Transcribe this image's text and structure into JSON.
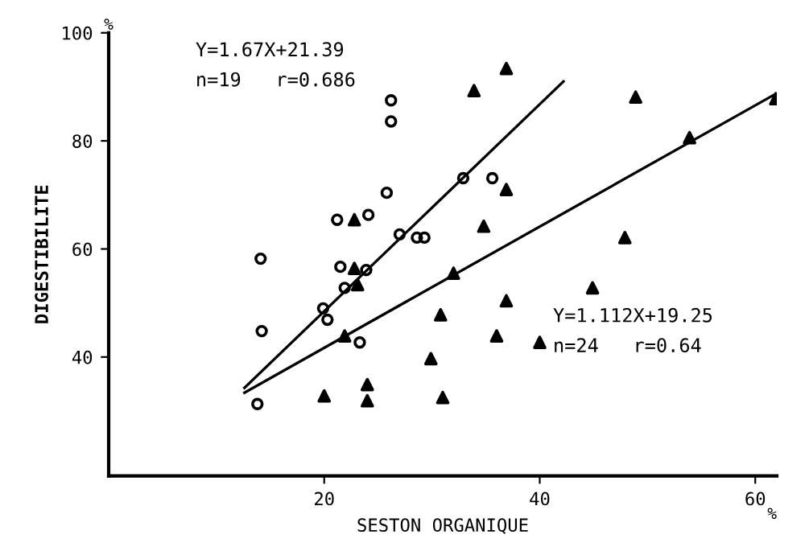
{
  "chart_data": {
    "type": "scatter",
    "xlabel": "SESTON ORGANIQUE",
    "ylabel": "DIGESTIBILITE",
    "xlim": [
      0,
      62
    ],
    "ylim": [
      18,
      100
    ],
    "xticks": [
      20,
      40,
      60
    ],
    "yticks": [
      40,
      60,
      80,
      100
    ],
    "grid": false,
    "legend": false,
    "annotations": [
      "Y=1.67X+21.39\nn=19   r=0.686",
      "Y=1.112X+19.25\nn=24   r=0.64",
      "%",
      "%"
    ],
    "series": [
      {
        "marker": "circle",
        "color": "#000000",
        "x": [
          14.1,
          26.2,
          26.2,
          25.8,
          21.2,
          24.1,
          27.0,
          21.5,
          23.9,
          28.6,
          29.3,
          32.9,
          35.6,
          21.9,
          19.9,
          20.3,
          14.2,
          23.3,
          13.8
        ],
        "values": [
          58.2,
          87.5,
          83.6,
          70.4,
          65.4,
          66.3,
          62.7,
          56.7,
          56.1,
          62.1,
          62.1,
          73.1,
          73.1,
          52.8,
          49.0,
          46.9,
          44.8,
          42.7,
          31.3
        ]
      },
      {
        "marker": "triangle",
        "color": "#000000",
        "x": [
          22.8,
          22.8,
          23.1,
          36.9,
          33.9,
          48.9,
          53.9,
          61.9,
          36.9,
          34.8,
          47.9,
          32.0,
          44.9,
          21.9,
          20.0,
          24.0,
          24.0,
          36.9,
          30.8,
          36.0,
          40.0,
          29.9,
          31.0
        ],
        "values": [
          65.4,
          56.4,
          53.4,
          93.4,
          89.3,
          88.1,
          80.6,
          87.8,
          71.0,
          64.2,
          62.1,
          55.5,
          52.8,
          43.9,
          32.8,
          34.9,
          31.9,
          50.4,
          47.8,
          43.9,
          42.7,
          39.7,
          32.5
        ]
      },
      {
        "type": "line",
        "marker": "none",
        "line_style": "solid",
        "color": "#000000",
        "x": [
          12.6,
          42.2
        ],
        "values": [
          34.3,
          91.0
        ]
      },
      {
        "type": "line",
        "marker": "none",
        "line_style": "solid",
        "color": "#000000",
        "x": [
          12.6,
          61.9
        ],
        "values": [
          33.4,
          88.7
        ]
      }
    ]
  }
}
